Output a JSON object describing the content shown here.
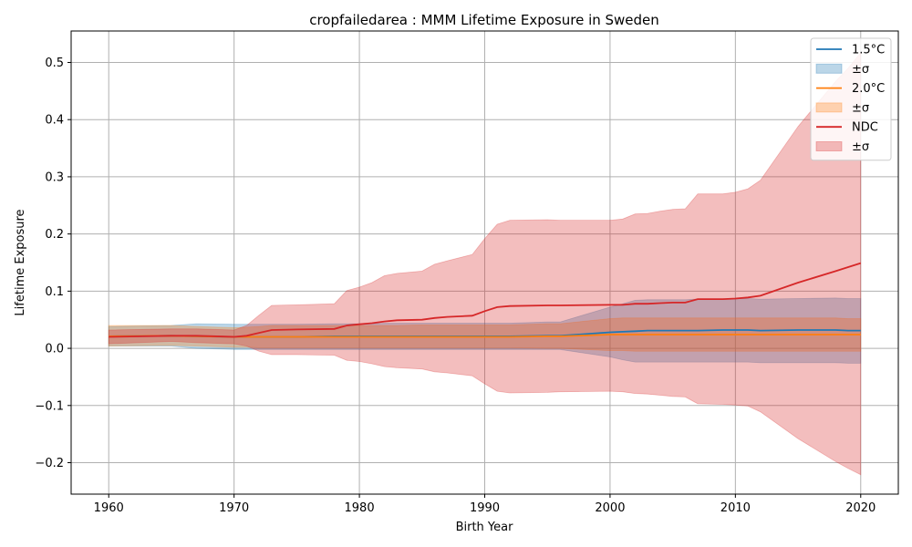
{
  "chart_data": {
    "type": "line",
    "title": "cropfailedarea : MMM Lifetime Exposure in Sweden",
    "xlabel": "Birth Year",
    "ylabel": "Lifetime Exposure",
    "xlim": [
      1957,
      2023
    ],
    "ylim": [
      -0.255,
      0.555
    ],
    "xticks": [
      1960,
      1970,
      1980,
      1990,
      2000,
      2010,
      2020
    ],
    "yticks": [
      -0.2,
      -0.1,
      0.0,
      0.1,
      0.2,
      0.3,
      0.4,
      0.5
    ],
    "ytick_labels": [
      "−0.2",
      "−0.1",
      "0.0",
      "0.1",
      "0.2",
      "0.3",
      "0.4",
      "0.5"
    ],
    "grid": true,
    "legend_position": "top-right",
    "legend": [
      {
        "label": "1.5°C",
        "kind": "line",
        "color": "#1f77b4"
      },
      {
        "label": "±σ",
        "kind": "band",
        "color": "#1f77b4"
      },
      {
        "label": "2.0°C",
        "kind": "line",
        "color": "#ff7f0e"
      },
      {
        "label": "±σ",
        "kind": "band",
        "color": "#ff7f0e"
      },
      {
        "label": "NDC",
        "kind": "line",
        "color": "#d62728"
      },
      {
        "label": "±σ",
        "kind": "band",
        "color": "#d62728"
      }
    ],
    "x": [
      1960,
      1965,
      1967,
      1970,
      1971,
      1972,
      1973,
      1975,
      1978,
      1979,
      1980,
      1981,
      1982,
      1983,
      1985,
      1986,
      1987,
      1989,
      1990,
      1991,
      1992,
      1995,
      1996,
      2000,
      2001,
      2002,
      2003,
      2004,
      2005,
      2006,
      2007,
      2009,
      2010,
      2011,
      2012,
      2015,
      2018,
      2019,
      2020
    ],
    "series": [
      {
        "name": "1.5°C",
        "color": "#1f77b4",
        "mean": [
          0.021,
          0.022,
          0.021,
          0.02,
          0.02,
          0.02,
          0.02,
          0.02,
          0.021,
          0.021,
          0.021,
          0.021,
          0.021,
          0.021,
          0.021,
          0.021,
          0.021,
          0.021,
          0.021,
          0.021,
          0.021,
          0.022,
          0.022,
          0.028,
          0.029,
          0.03,
          0.031,
          0.031,
          0.031,
          0.031,
          0.031,
          0.032,
          0.032,
          0.032,
          0.031,
          0.032,
          0.032,
          0.031,
          0.031
        ],
        "lower": [
          0.004,
          0.004,
          0.0,
          -0.002,
          -0.002,
          -0.002,
          -0.002,
          -0.002,
          -0.002,
          -0.002,
          -0.002,
          -0.002,
          -0.002,
          -0.002,
          -0.002,
          -0.002,
          -0.002,
          -0.002,
          -0.002,
          -0.002,
          -0.002,
          -0.002,
          -0.002,
          -0.015,
          -0.02,
          -0.024,
          -0.024,
          -0.024,
          -0.024,
          -0.024,
          -0.024,
          -0.024,
          -0.024,
          -0.024,
          -0.025,
          -0.025,
          -0.025,
          -0.026,
          -0.026
        ],
        "upper": [
          0.038,
          0.04,
          0.043,
          0.042,
          0.042,
          0.042,
          0.042,
          0.042,
          0.043,
          0.043,
          0.043,
          0.043,
          0.044,
          0.044,
          0.044,
          0.044,
          0.044,
          0.044,
          0.044,
          0.044,
          0.044,
          0.046,
          0.046,
          0.072,
          0.078,
          0.084,
          0.085,
          0.085,
          0.085,
          0.085,
          0.086,
          0.086,
          0.087,
          0.087,
          0.086,
          0.087,
          0.088,
          0.087,
          0.087
        ]
      },
      {
        "name": "2.0°C",
        "color": "#ff7f0e",
        "mean": [
          0.021,
          0.022,
          0.021,
          0.02,
          0.02,
          0.02,
          0.02,
          0.02,
          0.02,
          0.02,
          0.02,
          0.02,
          0.02,
          0.02,
          0.02,
          0.02,
          0.02,
          0.02,
          0.02,
          0.02,
          0.02,
          0.021,
          0.021,
          0.024,
          0.024,
          0.024,
          0.024,
          0.024,
          0.024,
          0.024,
          0.024,
          0.024,
          0.024,
          0.024,
          0.024,
          0.024,
          0.024,
          0.024,
          0.024
        ],
        "lower": [
          0.004,
          0.005,
          0.004,
          0.002,
          0.002,
          0.001,
          0.001,
          0.001,
          0.001,
          0.001,
          0.001,
          0.001,
          0.001,
          0.001,
          0.001,
          0.001,
          0.001,
          0.001,
          0.001,
          0.001,
          0.001,
          0.0,
          0.0,
          -0.004,
          -0.004,
          -0.005,
          -0.005,
          -0.005,
          -0.005,
          -0.005,
          -0.005,
          -0.005,
          -0.005,
          -0.005,
          -0.005,
          -0.005,
          -0.005,
          -0.005,
          -0.005
        ],
        "upper": [
          0.04,
          0.04,
          0.038,
          0.036,
          0.037,
          0.038,
          0.04,
          0.04,
          0.04,
          0.04,
          0.04,
          0.04,
          0.04,
          0.04,
          0.041,
          0.041,
          0.041,
          0.041,
          0.041,
          0.041,
          0.041,
          0.043,
          0.043,
          0.052,
          0.053,
          0.053,
          0.053,
          0.053,
          0.053,
          0.053,
          0.053,
          0.053,
          0.053,
          0.053,
          0.053,
          0.053,
          0.053,
          0.052,
          0.052
        ]
      },
      {
        "name": "NDC",
        "color": "#d62728",
        "mean": [
          0.02,
          0.022,
          0.022,
          0.02,
          0.022,
          0.027,
          0.032,
          0.033,
          0.034,
          0.04,
          0.042,
          0.044,
          0.047,
          0.049,
          0.05,
          0.053,
          0.055,
          0.057,
          0.065,
          0.072,
          0.074,
          0.075,
          0.075,
          0.076,
          0.076,
          0.078,
          0.078,
          0.079,
          0.08,
          0.08,
          0.086,
          0.086,
          0.087,
          0.089,
          0.092,
          0.115,
          0.135,
          0.142,
          0.149
        ],
        "lower": [
          0.008,
          0.012,
          0.01,
          0.008,
          0.004,
          -0.005,
          -0.011,
          -0.011,
          -0.012,
          -0.021,
          -0.023,
          -0.027,
          -0.032,
          -0.034,
          -0.036,
          -0.041,
          -0.043,
          -0.048,
          -0.062,
          -0.075,
          -0.078,
          -0.077,
          -0.076,
          -0.075,
          -0.076,
          -0.079,
          -0.08,
          -0.082,
          -0.084,
          -0.085,
          -0.097,
          -0.098,
          -0.099,
          -0.101,
          -0.111,
          -0.158,
          -0.198,
          -0.21,
          -0.221
        ],
        "upper": [
          0.032,
          0.034,
          0.034,
          0.032,
          0.04,
          0.058,
          0.075,
          0.076,
          0.078,
          0.101,
          0.107,
          0.115,
          0.127,
          0.131,
          0.135,
          0.147,
          0.153,
          0.164,
          0.192,
          0.217,
          0.224,
          0.225,
          0.224,
          0.224,
          0.226,
          0.235,
          0.236,
          0.24,
          0.243,
          0.244,
          0.27,
          0.27,
          0.273,
          0.279,
          0.294,
          0.388,
          0.467,
          0.49,
          0.517
        ]
      }
    ]
  }
}
